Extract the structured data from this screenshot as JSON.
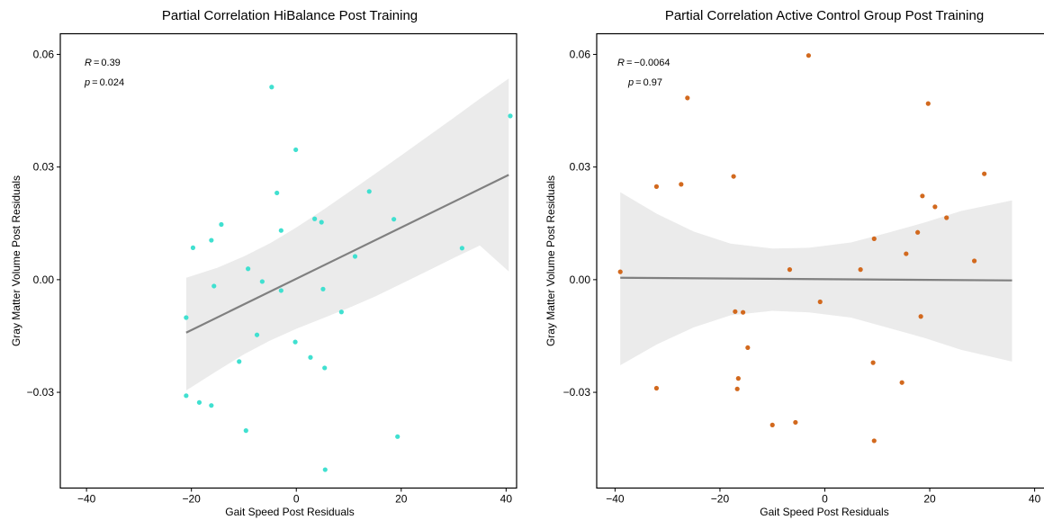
{
  "chart_data": [
    {
      "type": "scatter",
      "title": "Partial Correlation HiBalance Post Training",
      "xlabel": "Gait Speed Post Residuals",
      "ylabel": "Gray Matter Volume Post Residuals",
      "xlim": [
        -45,
        42
      ],
      "ylim": [
        -0.0555,
        0.0655
      ],
      "xticks": [
        -40,
        -20,
        0,
        20,
        40
      ],
      "yticks": [
        -0.03,
        0,
        0.03,
        0.06
      ],
      "xtick_labels": [
        "−40",
        "−20",
        "0",
        "20",
        "40"
      ],
      "ytick_labels": [
        "−0.03",
        "0.00",
        "0.03",
        "0.06"
      ],
      "grid": false,
      "point_color": "#40e0d0",
      "stats": {
        "r_label": "R",
        "r_value": "0.39",
        "p_label": "p",
        "p_value": "0.024"
      },
      "fit": {
        "x": [
          -21,
          40.5
        ],
        "y": [
          -0.0141,
          0.0279
        ],
        "color": "#808080"
      },
      "band": {
        "x": [
          -21,
          -15,
          -10,
          -5,
          0,
          5,
          10,
          15,
          20,
          25,
          30,
          35,
          40.5
        ],
        "upper": [
          0.0005,
          0.0032,
          0.0062,
          0.0097,
          0.0139,
          0.0185,
          0.0233,
          0.0282,
          0.0331,
          0.0381,
          0.0431,
          0.0482,
          0.0536
        ],
        "lower": [
          -0.0295,
          -0.0242,
          -0.0199,
          -0.0162,
          -0.0131,
          -0.0103,
          -0.0075,
          -0.0045,
          -0.0011,
          0.0023,
          0.0058,
          0.0091,
          0.0022
        ]
      },
      "points": [
        {
          "x": -21,
          "y": -0.0101
        },
        {
          "x": -21,
          "y": -0.0309
        },
        {
          "x": -19.7,
          "y": 0.0085
        },
        {
          "x": -18.5,
          "y": -0.0327
        },
        {
          "x": -16.2,
          "y": -0.0335
        },
        {
          "x": -16.2,
          "y": 0.0105
        },
        {
          "x": -15.7,
          "y": -0.0017
        },
        {
          "x": -14.3,
          "y": 0.0147
        },
        {
          "x": -10.9,
          "y": -0.0218
        },
        {
          "x": -9.6,
          "y": -0.0402
        },
        {
          "x": -9.2,
          "y": 0.0029
        },
        {
          "x": -7.5,
          "y": -0.0147
        },
        {
          "x": -6.5,
          "y": -0.0005
        },
        {
          "x": -4.7,
          "y": 0.0513
        },
        {
          "x": -3.7,
          "y": 0.0231
        },
        {
          "x": -2.9,
          "y": 0.0131
        },
        {
          "x": -2.9,
          "y": -0.0029
        },
        {
          "x": -0.2,
          "y": -0.0166
        },
        {
          "x": -0.1,
          "y": 0.0346
        },
        {
          "x": 2.7,
          "y": -0.0207
        },
        {
          "x": 3.5,
          "y": 0.0162
        },
        {
          "x": 4.8,
          "y": 0.0153
        },
        {
          "x": 5.1,
          "y": -0.0025
        },
        {
          "x": 5.4,
          "y": -0.0235
        },
        {
          "x": 5.5,
          "y": -0.0506
        },
        {
          "x": 8.6,
          "y": -0.0086
        },
        {
          "x": 11.2,
          "y": 0.0062
        },
        {
          "x": 13.9,
          "y": 0.0235
        },
        {
          "x": 18.6,
          "y": 0.0161
        },
        {
          "x": 19.3,
          "y": -0.0418
        },
        {
          "x": 31.6,
          "y": 0.0084
        },
        {
          "x": 40.8,
          "y": 0.0436
        }
      ]
    },
    {
      "type": "scatter",
      "title": "Partial Correlation Active Control Group Post Training",
      "xlabel": "Gait Speed Post Residuals",
      "ylabel": "Gray Matter Volume Post Residuals",
      "xlim": [
        -43.5,
        43.5
      ],
      "ylim": [
        -0.0555,
        0.0655
      ],
      "xticks": [
        -40,
        -20,
        0,
        20,
        40
      ],
      "yticks": [
        -0.03,
        0,
        0.03,
        0.06
      ],
      "xtick_labels": [
        "−40",
        "−20",
        "0",
        "20",
        "40"
      ],
      "ytick_labels": [
        "−0.03",
        "0.00",
        "0.03",
        "0.06"
      ],
      "grid": false,
      "point_color": "#d2691e",
      "stats": {
        "r_label": "R",
        "r_value": "−0.0064",
        "p_label": "p",
        "p_value": "0.97"
      },
      "fit": {
        "x": [
          -39,
          35.7
        ],
        "y": [
          0.0005,
          -0.0002
        ],
        "color": "#808080"
      },
      "band": {
        "x": [
          -39,
          -32,
          -25,
          -18,
          -10,
          -3,
          5,
          12,
          19,
          26,
          35.7
        ],
        "upper": [
          0.0233,
          0.0175,
          0.0128,
          0.0096,
          0.0083,
          0.0085,
          0.0099,
          0.0125,
          0.0152,
          0.0183,
          0.0211
        ],
        "lower": [
          -0.0228,
          -0.0172,
          -0.0127,
          -0.0095,
          -0.0083,
          -0.0087,
          -0.0101,
          -0.0128,
          -0.0155,
          -0.0187,
          -0.0218
        ]
      },
      "points": [
        {
          "x": -39,
          "y": 0.0021
        },
        {
          "x": -32.1,
          "y": 0.0248
        },
        {
          "x": -32.1,
          "y": -0.0289
        },
        {
          "x": -27.4,
          "y": 0.0254
        },
        {
          "x": -26.2,
          "y": 0.0484
        },
        {
          "x": -17.4,
          "y": 0.0275
        },
        {
          "x": -17.1,
          "y": -0.0085
        },
        {
          "x": -16.7,
          "y": -0.0291
        },
        {
          "x": -16.5,
          "y": -0.0263
        },
        {
          "x": -15.6,
          "y": -0.0087
        },
        {
          "x": -14.7,
          "y": -0.0181
        },
        {
          "x": -10,
          "y": -0.0387
        },
        {
          "x": -6.7,
          "y": 0.0027
        },
        {
          "x": -5.6,
          "y": -0.038
        },
        {
          "x": -3.1,
          "y": 0.0597
        },
        {
          "x": -0.9,
          "y": -0.0059
        },
        {
          "x": 6.8,
          "y": 0.0027
        },
        {
          "x": 9.2,
          "y": -0.0221
        },
        {
          "x": 9.4,
          "y": 0.0109
        },
        {
          "x": 9.4,
          "y": -0.0429
        },
        {
          "x": 14.7,
          "y": -0.0274
        },
        {
          "x": 15.5,
          "y": 0.0069
        },
        {
          "x": 17.7,
          "y": 0.0126
        },
        {
          "x": 18.3,
          "y": -0.0098
        },
        {
          "x": 18.6,
          "y": 0.0223
        },
        {
          "x": 19.7,
          "y": 0.0469
        },
        {
          "x": 21,
          "y": 0.0194
        },
        {
          "x": 23.2,
          "y": 0.0165
        },
        {
          "x": 28.5,
          "y": 0.005
        },
        {
          "x": 30.4,
          "y": 0.0282
        }
      ]
    }
  ]
}
